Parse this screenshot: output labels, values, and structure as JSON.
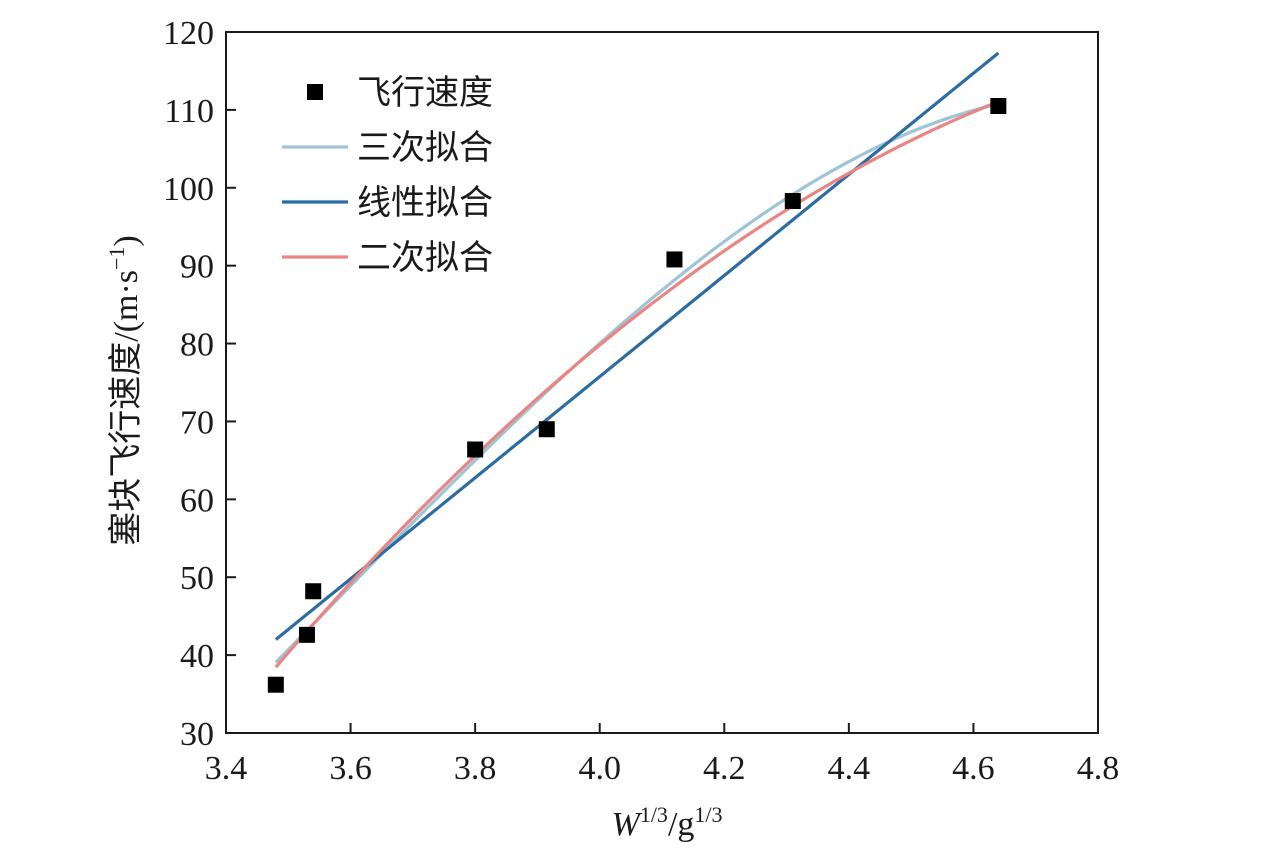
{
  "chart_data": {
    "type": "scatter",
    "xlabel": {
      "main": "W",
      "sup1": "1/3",
      "sep": "/g",
      "sup2": "1/3"
    },
    "ylabel": {
      "main": "塞块飞行速度/(m·s",
      "sup": "−1",
      "close": ")"
    },
    "xlim": [
      3.4,
      4.8
    ],
    "ylim": [
      30,
      120
    ],
    "xticks": [
      "3.4",
      "3.6",
      "3.8",
      "4.0",
      "4.2",
      "4.4",
      "4.6",
      "4.8"
    ],
    "yticks": [
      "30",
      "40",
      "50",
      "60",
      "70",
      "80",
      "90",
      "100",
      "110",
      "120"
    ],
    "legend_position": "top-left",
    "series": [
      {
        "name": "飞行速度",
        "kind": "points",
        "color": "#000000",
        "x": [
          3.48,
          3.53,
          3.54,
          3.8,
          3.915,
          4.12,
          4.31,
          4.64
        ],
        "y": [
          36.2,
          42.6,
          48.2,
          66.4,
          69.0,
          90.8,
          98.3,
          110.5
        ]
      },
      {
        "name": "三次拟合",
        "kind": "curve",
        "color": "#9ec5d6",
        "fit": "cubic",
        "x": [
          3.48,
          3.6,
          3.8,
          4.0,
          4.2,
          4.4,
          4.64
        ],
        "y": [
          39.0,
          49.0,
          65.0,
          80.0,
          93.0,
          103.5,
          110.7
        ]
      },
      {
        "name": "线性拟合",
        "kind": "curve",
        "color": "#2b6ca3",
        "fit": "linear",
        "x": [
          3.48,
          4.64
        ],
        "y": [
          42.0,
          117.3
        ]
      },
      {
        "name": "二次拟合",
        "kind": "curve",
        "color": "#e98582",
        "fit": "quadratic",
        "x": [
          3.48,
          3.8,
          4.4,
          4.64
        ],
        "y": [
          38.5,
          65.5,
          102.0,
          111.0
        ]
      }
    ]
  }
}
